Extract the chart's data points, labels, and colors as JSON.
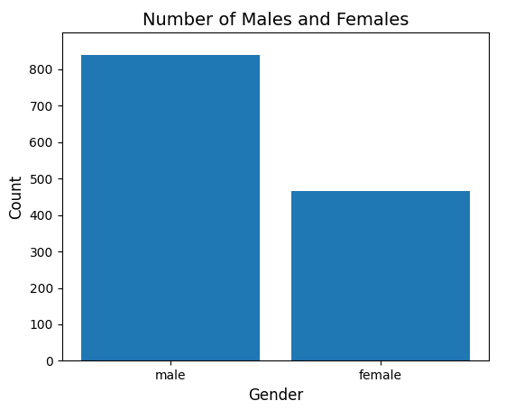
{
  "categories": [
    "male",
    "female"
  ],
  "values": [
    840,
    465
  ],
  "bar_color": "#1f77b4",
  "title": "Number of Males and Females",
  "xlabel": "Gender",
  "ylabel": "Count",
  "ylim": [
    0,
    900
  ],
  "yticks": [
    0,
    100,
    200,
    300,
    400,
    500,
    600,
    700,
    800
  ],
  "title_fontsize": 14,
  "label_fontsize": 12,
  "bar_width": 0.85
}
